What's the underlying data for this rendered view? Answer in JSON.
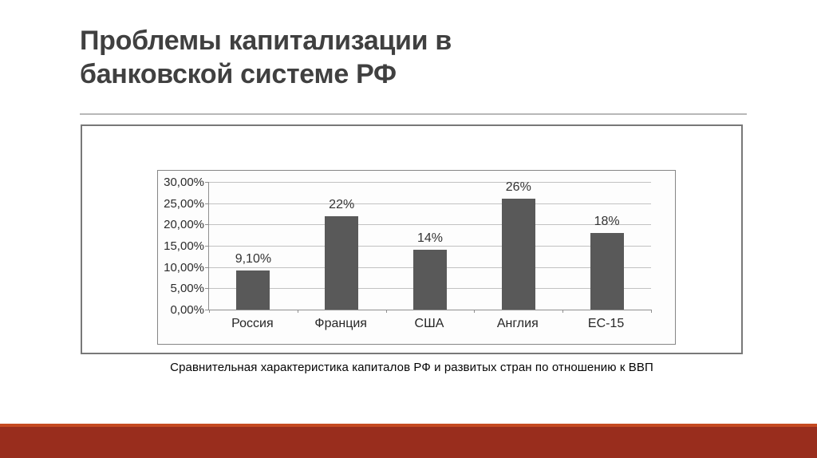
{
  "slide": {
    "title": "Проблемы капитализации в банковской системе РФ",
    "caption": "Сравнительная характеристика капиталов РФ  и развитых стран по отношению к ВВП"
  },
  "chart_data": {
    "type": "bar",
    "title": "",
    "xlabel": "",
    "ylabel": "",
    "categories": [
      "Россия",
      "Франция",
      "США",
      "Англия",
      "ЕС-15"
    ],
    "values": [
      9.1,
      22,
      14,
      26,
      18
    ],
    "value_labels": [
      "9,10%",
      "22%",
      "14%",
      "26%",
      "18%"
    ],
    "y_ticks": [
      "30,00%",
      "25,00%",
      "20,00%",
      "15,00%",
      "10,00%",
      "5,00%",
      "0,00%"
    ],
    "ylim": [
      0,
      30
    ],
    "grid": true,
    "legend": "none",
    "bar_color": "#595959",
    "gridline_color": "#c2c2c2"
  },
  "theme": {
    "title_color": "#404040",
    "accent_line_color": "#c54a21",
    "accent_band_color": "#992d1d"
  }
}
